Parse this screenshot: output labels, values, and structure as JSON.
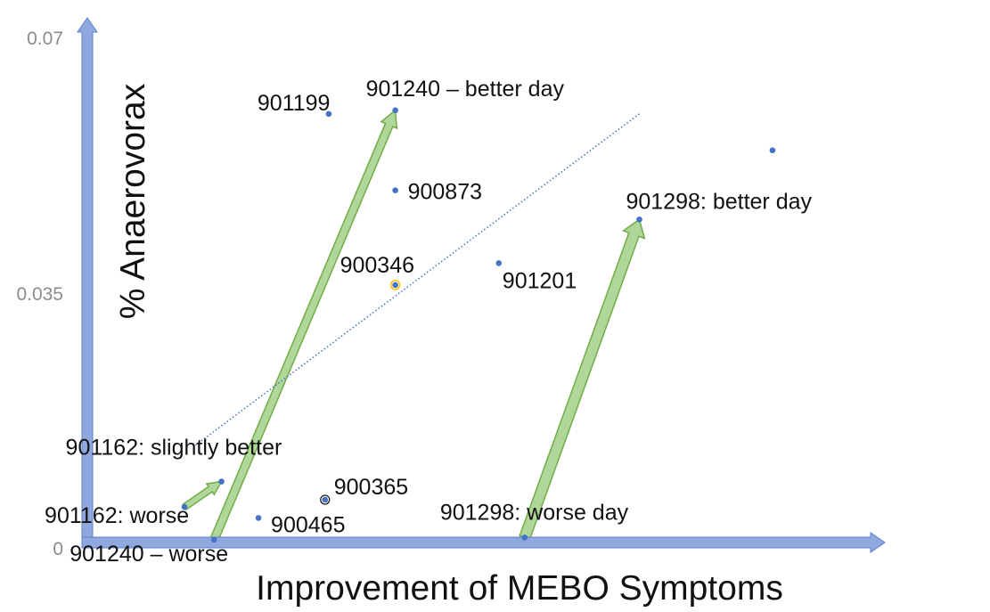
{
  "chart_data": {
    "type": "scatter",
    "title": "",
    "xlabel": "Improvement of MEBO Symptoms",
    "ylabel": "% Anaerovorax",
    "ylim": [
      0,
      0.07
    ],
    "yticks": [
      "0",
      "0.035",
      "0.07"
    ],
    "grid": false,
    "legend": "none",
    "colors": {
      "axis": "#8fa8dd",
      "axis_edge": "#5b7fcc",
      "point": "#4472c4",
      "arrow_fill": "#a9d18e",
      "arrow_edge": "#70ad47",
      "trend": "#4472c4",
      "highlight_ring": "#ffc000"
    },
    "points": [
      {
        "label": "901199",
        "x": 3.3,
        "y": 0.059
      },
      {
        "label": "901240 – better day",
        "x": 4.2,
        "y": 0.0595
      },
      {
        "label": "900873",
        "x": 4.2,
        "y": 0.0485
      },
      {
        "label": "900346",
        "x": 4.2,
        "y": 0.0355
      },
      {
        "label": "901201",
        "x": 5.6,
        "y": 0.0385
      },
      {
        "label": "901298: better day",
        "x": 7.5,
        "y": 0.0445
      },
      {
        "label": "901162: slightly better",
        "x": 1.85,
        "y": 0.0085
      },
      {
        "label": "901162: worse",
        "x": 1.35,
        "y": 0.005
      },
      {
        "label": "901240 – worse",
        "x": 1.75,
        "y": 0.0005
      },
      {
        "label": "900465",
        "x": 2.35,
        "y": 0.0035
      },
      {
        "label": "900365",
        "x": 3.25,
        "y": 0.006
      },
      {
        "label": "901298: worse day",
        "x": 5.95,
        "y": 0.0008
      },
      {
        "label": "",
        "x": 9.3,
        "y": 0.054
      }
    ],
    "arrows": [
      {
        "from": "901162: worse",
        "to": "901162: slightly better"
      },
      {
        "from": "901240 – worse",
        "to": "901240 – better day"
      },
      {
        "from": "901298: worse day",
        "to": "901298: better day"
      }
    ],
    "trendline": {
      "style": "dotted",
      "from": {
        "x": 1.5,
        "y": 0.0135
      },
      "to": {
        "x": 7.5,
        "y": 0.059
      }
    }
  }
}
